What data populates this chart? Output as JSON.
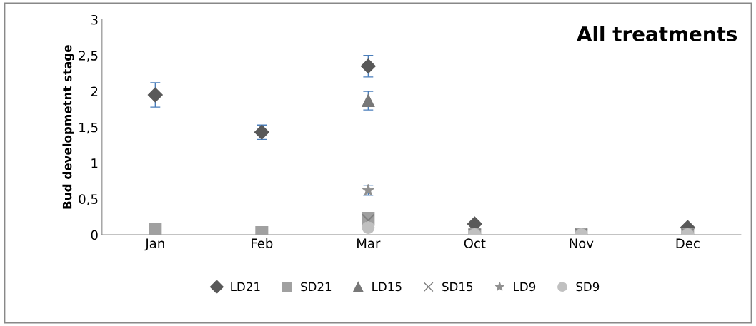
{
  "chart_data": {
    "type": "scatter",
    "title": "All treatments",
    "ylabel": "Bud developmetnt stage",
    "categories": [
      "Jan",
      "Feb",
      "Mar",
      "Oct",
      "Nov",
      "Dec"
    ],
    "series": [
      {
        "name": "LD21",
        "color": "#595959",
        "marker": "diamond",
        "values": [
          1.95,
          1.43,
          2.35,
          0.15,
          null,
          0.1
        ],
        "errors": [
          0.17,
          0.1,
          0.15,
          null,
          null,
          null
        ]
      },
      {
        "name": "SD21",
        "color": "#a0a0a0",
        "marker": "square",
        "values": [
          0.08,
          0.03,
          0.23,
          0,
          0,
          0
        ]
      },
      {
        "name": "LD15",
        "color": "#787878",
        "marker": "triangle",
        "values": [
          null,
          null,
          1.87,
          null,
          null,
          null
        ],
        "errors": [
          null,
          null,
          0.13,
          null,
          null,
          null
        ]
      },
      {
        "name": "SD15",
        "color": "#808080",
        "marker": "cross",
        "values": [
          null,
          null,
          0.2,
          0,
          0,
          0
        ]
      },
      {
        "name": "LD9",
        "color": "#909090",
        "marker": "star",
        "values": [
          null,
          null,
          0.62,
          null,
          null,
          null
        ],
        "errors": [
          null,
          null,
          0.07,
          null,
          null,
          null
        ]
      },
      {
        "name": "SD9",
        "color": "#c0c0c0",
        "marker": "circle",
        "values": [
          null,
          null,
          0.1,
          0,
          0,
          0
        ]
      }
    ],
    "ylim": [
      0,
      3
    ],
    "yticks": [
      0,
      {
        "value": 0.5,
        "label": "0,5"
      },
      1,
      {
        "value": 1.5,
        "label": "1,5"
      },
      2,
      {
        "value": 2.5,
        "label": "2,5"
      },
      3
    ],
    "grid": false,
    "legend": "bottom"
  }
}
